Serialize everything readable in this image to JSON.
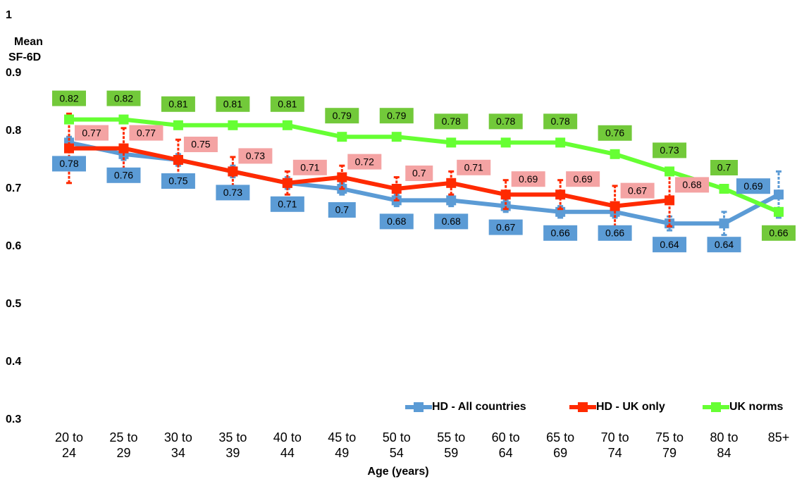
{
  "chart_data": {
    "type": "line",
    "y_label": [
      "Mean",
      "SF-6D"
    ],
    "x_label": "Age (years)",
    "categories": [
      "20 to 24",
      "25 to 29",
      "30 to 34",
      "35 to 39",
      "40 to 44",
      "45 to 49",
      "50 to 54",
      "55 to 59",
      "60 to 64",
      "65 to 69",
      "70 to 74",
      "75 to 79",
      "80 to 84",
      "85+"
    ],
    "series": [
      {
        "name": "HD - All countries",
        "color": "#5b9bd5",
        "label_color": "#5b9bd5",
        "values": [
          0.78,
          0.76,
          0.75,
          0.73,
          0.71,
          0.7,
          0.68,
          0.68,
          0.67,
          0.66,
          0.66,
          0.64,
          0.64,
          0.69
        ],
        "errors": [
          0.01,
          0.01,
          0.01,
          0.01,
          0.01,
          0.01,
          0.01,
          0.01,
          0.01,
          0.01,
          0.01,
          0.012,
          0.02,
          0.04
        ]
      },
      {
        "name": "HD - UK only",
        "color": "#ff2a00",
        "label_color": "#f4a3a3",
        "values": [
          0.77,
          0.77,
          0.75,
          0.73,
          0.71,
          0.72,
          0.7,
          0.71,
          0.69,
          0.69,
          0.67,
          0.68,
          null,
          null
        ],
        "errors": [
          0.06,
          0.035,
          0.035,
          0.025,
          0.02,
          0.02,
          0.02,
          0.02,
          0.025,
          0.025,
          0.035,
          0.045,
          null,
          null
        ]
      },
      {
        "name": "UK norms",
        "color": "#66ff33",
        "label_color": "#72c93a",
        "values": [
          0.82,
          0.82,
          0.81,
          0.81,
          0.81,
          0.79,
          0.79,
          0.78,
          0.78,
          0.78,
          0.76,
          0.73,
          0.7,
          0.66
        ]
      }
    ],
    "ylim": [
      0.3,
      1
    ],
    "yticks": [
      0.3,
      0.4,
      0.5,
      0.6,
      0.7,
      0.8,
      0.9,
      1
    ],
    "legend": "lower right"
  }
}
